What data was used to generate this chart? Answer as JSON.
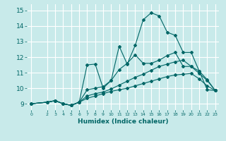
{
  "xlabel": "Humidex (Indice chaleur)",
  "bg_color": "#c8eaea",
  "grid_color": "#ffffff",
  "line_color": "#006666",
  "xlim": [
    -0.5,
    23.5
  ],
  "ylim": [
    8.6,
    15.4
  ],
  "xticks": [
    0,
    2,
    3,
    4,
    5,
    6,
    7,
    8,
    9,
    10,
    11,
    12,
    13,
    14,
    15,
    16,
    17,
    18,
    19,
    20,
    21,
    22,
    23
  ],
  "yticks": [
    9,
    10,
    11,
    12,
    13,
    14,
    15
  ],
  "lines": [
    {
      "x": [
        0,
        2,
        3,
        4,
        5,
        6,
        7,
        8,
        9,
        10,
        11,
        12,
        13,
        14,
        15,
        16,
        17,
        18,
        19,
        20,
        21,
        22,
        23
      ],
      "y": [
        9.0,
        9.1,
        9.2,
        9.0,
        8.9,
        9.1,
        11.5,
        11.55,
        10.0,
        10.5,
        12.7,
        11.55,
        12.75,
        14.4,
        14.85,
        14.65,
        13.6,
        13.4,
        12.3,
        12.3,
        11.1,
        9.9,
        9.85
      ]
    },
    {
      "x": [
        0,
        2,
        3,
        4,
        5,
        6,
        7,
        8,
        9,
        10,
        11,
        12,
        13,
        14,
        15,
        16,
        17,
        18,
        19,
        20,
        21,
        22,
        23
      ],
      "y": [
        9.0,
        9.1,
        9.2,
        9.0,
        8.9,
        9.1,
        9.9,
        10.0,
        10.1,
        10.5,
        11.2,
        11.6,
        12.15,
        11.6,
        11.6,
        11.8,
        12.1,
        12.3,
        11.4,
        11.4,
        11.1,
        10.55,
        9.85
      ]
    },
    {
      "x": [
        0,
        2,
        3,
        4,
        5,
        6,
        7,
        8,
        9,
        10,
        11,
        12,
        13,
        14,
        15,
        16,
        17,
        18,
        19,
        20,
        21,
        22,
        23
      ],
      "y": [
        9.0,
        9.1,
        9.2,
        9.0,
        8.9,
        9.1,
        9.5,
        9.65,
        9.75,
        9.95,
        10.2,
        10.45,
        10.7,
        10.9,
        11.15,
        11.4,
        11.55,
        11.7,
        11.8,
        11.4,
        10.95,
        10.5,
        9.85
      ]
    },
    {
      "x": [
        0,
        2,
        3,
        4,
        5,
        6,
        7,
        8,
        9,
        10,
        11,
        12,
        13,
        14,
        15,
        16,
        17,
        18,
        19,
        20,
        21,
        22,
        23
      ],
      "y": [
        9.0,
        9.1,
        9.2,
        9.0,
        8.9,
        9.1,
        9.35,
        9.5,
        9.65,
        9.8,
        9.9,
        10.0,
        10.15,
        10.3,
        10.45,
        10.6,
        10.75,
        10.85,
        10.9,
        10.95,
        10.6,
        10.15,
        9.85
      ]
    }
  ]
}
